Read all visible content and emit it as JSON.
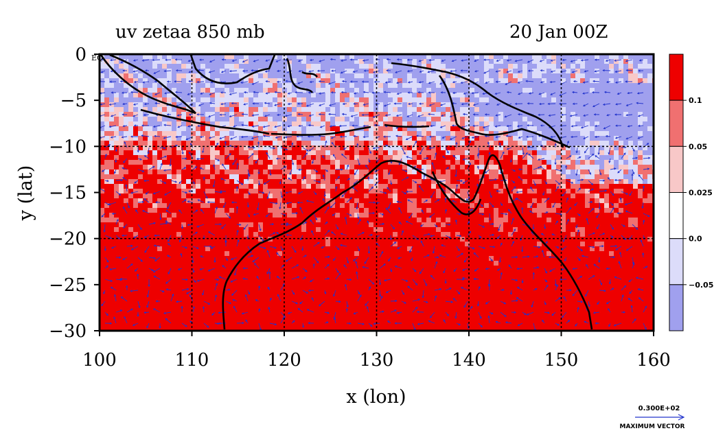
{
  "chart_data": {
    "type": "heatmap",
    "title_left": "uv zetaa 850 mb",
    "title_right": "20 Jan 00Z",
    "xlabel": "x (lon)",
    "ylabel": "y (lat)",
    "xlim": [
      100,
      160
    ],
    "ylim": [
      -30,
      0
    ],
    "x_ticks": [
      "100",
      "110",
      "120",
      "130",
      "140",
      "150",
      "160"
    ],
    "y_ticks": [
      "0",
      "−5",
      "−10",
      "−15",
      "−20",
      "−25",
      "−30"
    ],
    "eq_label": "EQ",
    "colorbar": {
      "labels": [
        "0.1",
        "0.05",
        "0.025",
        "0.0",
        "−0.05"
      ],
      "colors": [
        "#ee0000",
        "#f07070",
        "#f8c8c8",
        "#ffffff",
        "#dcdcfa",
        "#a0a0ee"
      ]
    },
    "vector_legend": {
      "magnitude": "0.300E+02",
      "caption": "MAXIMUM VECTOR"
    },
    "colors": {
      "strong_pos": "#ee0000",
      "mid_pos": "#f07070",
      "light_pos": "#f8c8c8",
      "light_neg": "#dcdcfa",
      "strong_neg": "#a0a0ee",
      "vector": "#2233cc",
      "coast": "#000000"
    }
  }
}
